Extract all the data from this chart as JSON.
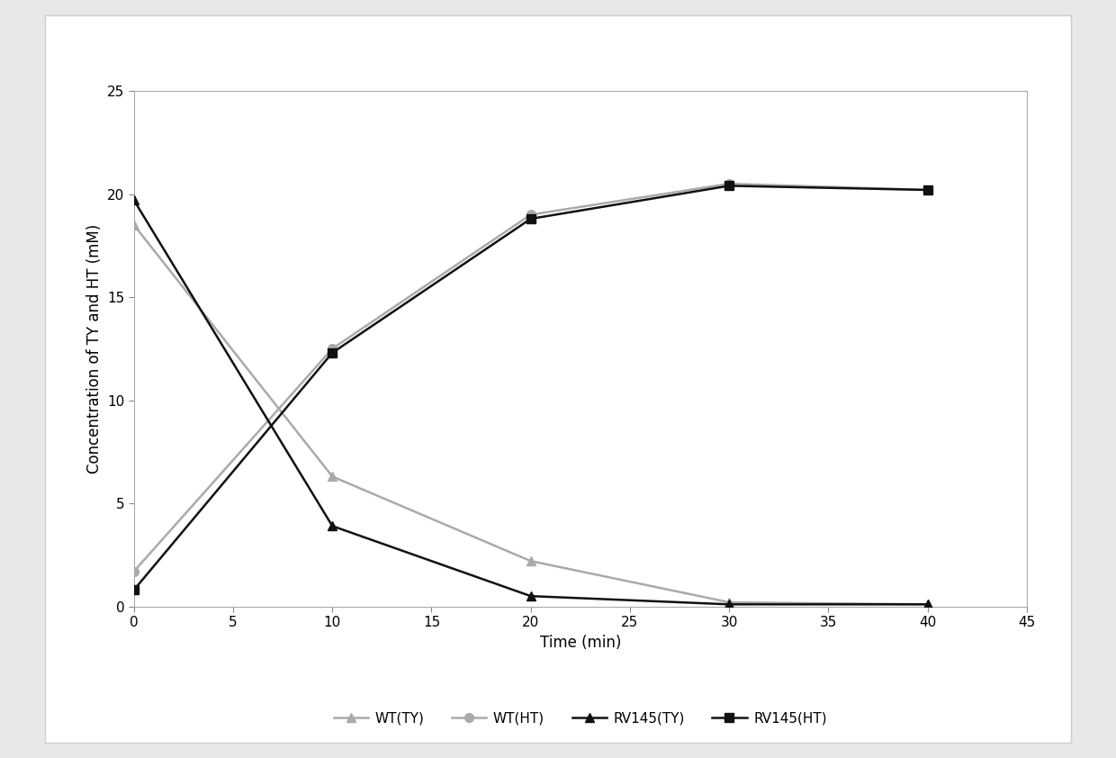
{
  "time": [
    0,
    10,
    20,
    30,
    40
  ],
  "wt_ty": [
    18.5,
    6.3,
    2.2,
    0.2,
    0.1
  ],
  "wt_ht": [
    1.7,
    12.5,
    19.0,
    20.5,
    20.2
  ],
  "rv145_ty": [
    19.7,
    3.9,
    0.5,
    0.1,
    0.1
  ],
  "rv145_ht": [
    0.8,
    12.3,
    18.8,
    20.4,
    20.2
  ],
  "color_gray": "#aaaaaa",
  "color_black": "#111111",
  "xlabel": "Time (min)",
  "ylabel": "Concentration of TY and HT (mM)",
  "xlim": [
    0,
    45
  ],
  "ylim": [
    0,
    25
  ],
  "yticks": [
    0,
    5,
    10,
    15,
    20,
    25
  ],
  "xticks": [
    0,
    5,
    10,
    15,
    20,
    25,
    30,
    35,
    40,
    45
  ],
  "legend_labels": [
    "WT(TY)",
    "WT(HT)",
    "RV145(TY)",
    "RV145(HT)"
  ],
  "figure_bg": "#e8e8e8",
  "outer_box_bg": "#ffffff",
  "axes_bg": "#ffffff",
  "label_fontsize": 12,
  "tick_fontsize": 11,
  "legend_fontsize": 11,
  "linewidth": 1.8,
  "markersize": 7
}
